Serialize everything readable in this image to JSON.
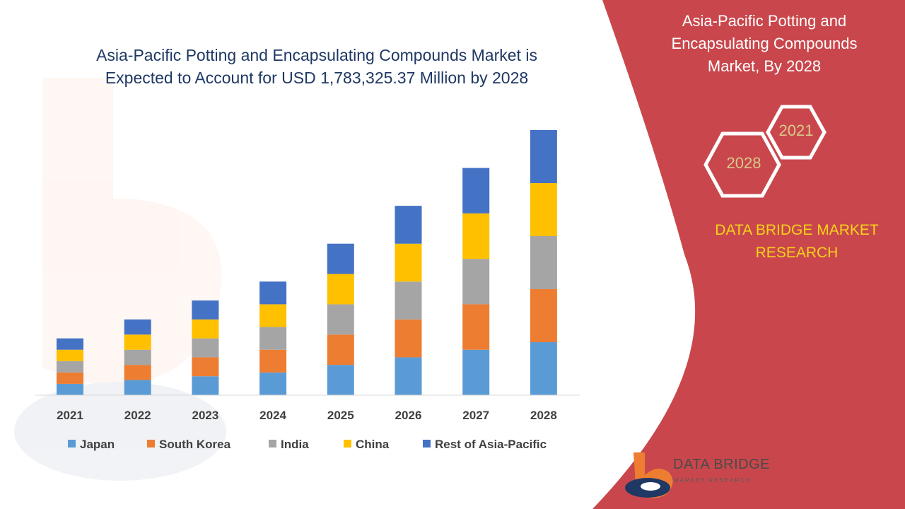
{
  "chart_data": {
    "type": "bar",
    "stacked": true,
    "title": "Asia-Pacific Potting and Encapsulating Compounds Market is Expected to Account for USD 1,783,325.37 Million by 2028",
    "title_lines": [
      "Asia-Pacific Potting and Encapsulating Compounds Market is",
      "Expected to Account for USD 1,783,325.37 Million by 2028"
    ],
    "categories": [
      "2021",
      "2022",
      "2023",
      "2024",
      "2025",
      "2026",
      "2027",
      "2028"
    ],
    "series": [
      {
        "name": "Japan",
        "color": "#5b9bd5",
        "values": [
          15,
          20,
          25,
          30,
          40,
          50,
          60,
          70
        ]
      },
      {
        "name": "South Korea",
        "color": "#ed7d31",
        "values": [
          15,
          20,
          25,
          30,
          40,
          50,
          60,
          70
        ]
      },
      {
        "name": "India",
        "color": "#a5a5a5",
        "values": [
          15,
          20,
          25,
          30,
          40,
          50,
          60,
          70
        ]
      },
      {
        "name": "China",
        "color": "#ffc000",
        "values": [
          15,
          20,
          25,
          30,
          40,
          50,
          60,
          70
        ]
      },
      {
        "name": "Rest of Asia-Pacific",
        "color": "#4472c4",
        "values": [
          15,
          20,
          25,
          30,
          40,
          50,
          60,
          70
        ]
      }
    ],
    "ylim": [
      0,
      350
    ],
    "grid": false,
    "legend_position": "bottom"
  },
  "side_panel": {
    "title_lines": [
      "Asia-Pacific Potting and",
      "Encapsulating Compounds",
      "Market, By 2028"
    ],
    "hex_year_top": "2021",
    "hex_year_bottom": "2028",
    "brand_lines": [
      "DATA BRIDGE MARKET",
      "RESEARCH"
    ],
    "panel_color": "#c9474c",
    "hex_color": "#ffffff",
    "brand_color": "#f7d21a"
  },
  "logo": {
    "name": "DATA BRIDGE",
    "tagline": "MARKET RESEARCH"
  }
}
